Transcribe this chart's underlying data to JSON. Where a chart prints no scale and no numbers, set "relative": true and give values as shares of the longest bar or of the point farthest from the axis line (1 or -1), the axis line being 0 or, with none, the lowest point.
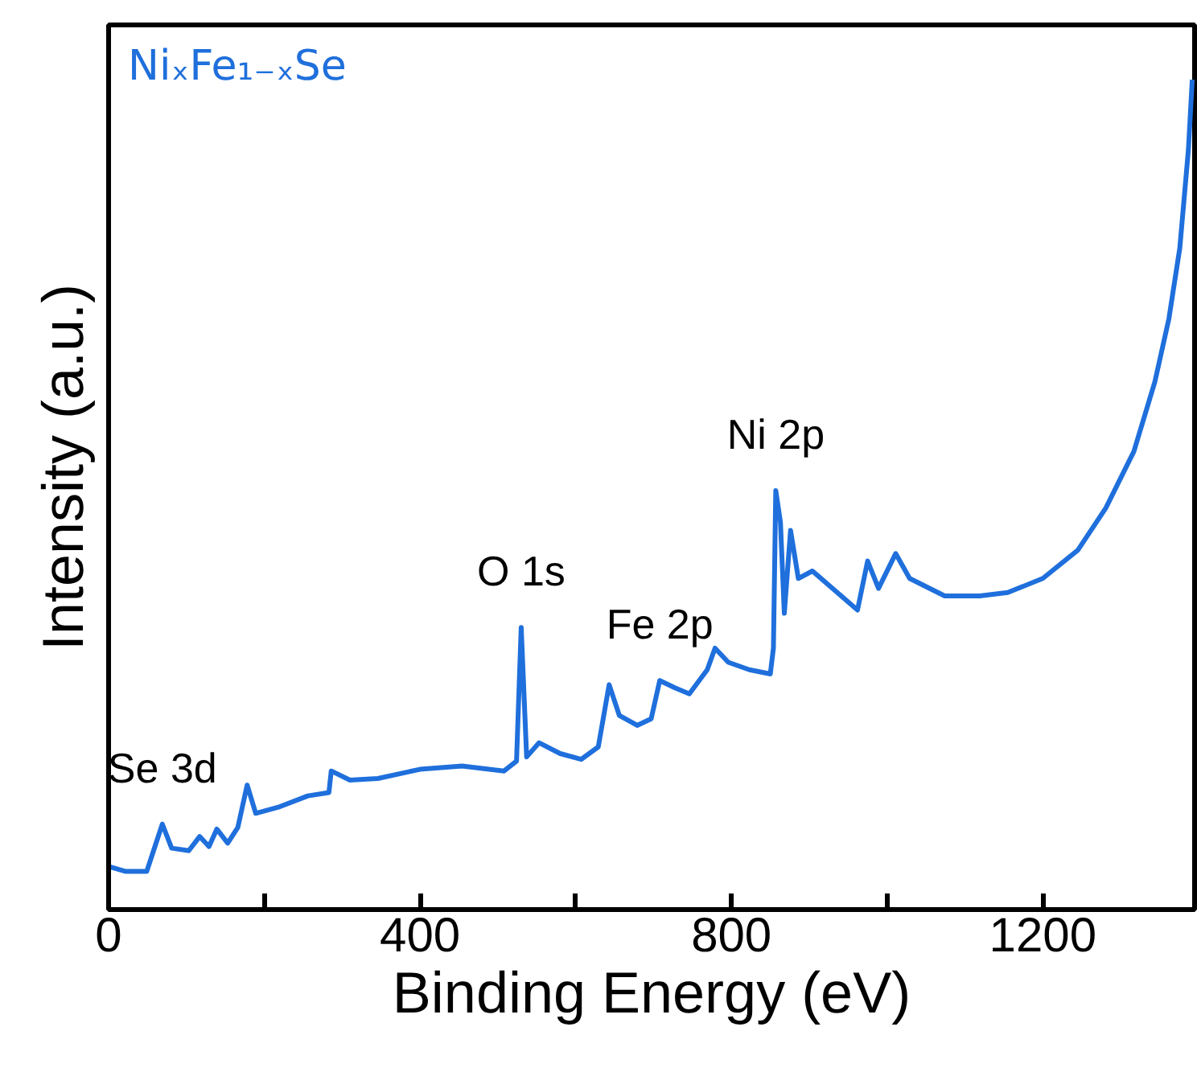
{
  "chart_data": {
    "type": "line",
    "xlabel": "Binding Energy (eV)",
    "ylabel": "Intensity (a.u.)",
    "relative": true,
    "xlim": [
      0,
      1395
    ],
    "xticks": [
      0,
      {
        "value": 200,
        "label": null
      },
      400,
      {
        "value": 600,
        "label": null
      },
      800,
      {
        "value": 1000,
        "label": null
      },
      1200
    ],
    "grid": false,
    "marker": "none",
    "line_style": "solid",
    "x": [
      0,
      22,
      49,
      69,
      81,
      103,
      117,
      129,
      139,
      153,
      166,
      178,
      189,
      220,
      256,
      283,
      286,
      310,
      346,
      400,
      454,
      508,
      524,
      530,
      537,
      553,
      580,
      607,
      629,
      643,
      656,
      679,
      697,
      708,
      728,
      746,
      769,
      779,
      796,
      823,
      850,
      854,
      857,
      863,
      868,
      876,
      886,
      904,
      930,
      962,
      975,
      989,
      1011,
      1029,
      1074,
      1119,
      1155,
      1200,
      1245,
      1281,
      1317,
      1344,
      1362,
      1376,
      1387,
      1392
    ],
    "series": [
      {
        "name": "NiₓFe₁₋ₓSe",
        "color": "#1f6fdc",
        "values": [
          0.052,
          0.046,
          0.046,
          0.103,
          0.074,
          0.071,
          0.088,
          0.076,
          0.097,
          0.08,
          0.099,
          0.15,
          0.116,
          0.124,
          0.137,
          0.141,
          0.167,
          0.156,
          0.158,
          0.169,
          0.173,
          0.167,
          0.179,
          0.34,
          0.184,
          0.201,
          0.188,
          0.181,
          0.196,
          0.271,
          0.234,
          0.222,
          0.23,
          0.276,
          0.267,
          0.26,
          0.289,
          0.315,
          0.298,
          0.289,
          0.284,
          0.315,
          0.505,
          0.467,
          0.357,
          0.457,
          0.399,
          0.408,
          0.387,
          0.361,
          0.42,
          0.387,
          0.429,
          0.399,
          0.378,
          0.378,
          0.382,
          0.399,
          0.433,
          0.484,
          0.552,
          0.636,
          0.712,
          0.797,
          0.915,
          1.0
        ]
      }
    ],
    "annotations": [
      {
        "text": "Se 3d",
        "x": 69,
        "y": 0.103
      },
      {
        "text": "O 1s",
        "x": 530,
        "y": 0.34
      },
      {
        "text": "Fe 2p",
        "x": 708,
        "y": 0.276
      },
      {
        "text": "Ni 2p",
        "x": 857,
        "y": 0.505
      }
    ]
  }
}
